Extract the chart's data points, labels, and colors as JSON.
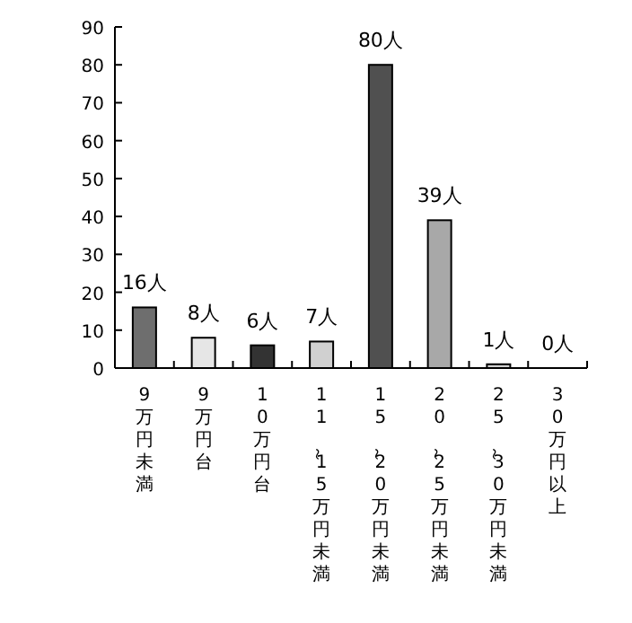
{
  "chart_data": {
    "type": "bar",
    "categories": [
      "9万円未満",
      "9万円台",
      "10万円台",
      "11～15万円未満",
      "15～20万円未満",
      "20～25万円未満",
      "25～30万円未満",
      "30万円以上"
    ],
    "values": [
      16,
      8,
      6,
      7,
      80,
      39,
      1,
      0
    ],
    "colors": [
      "#6e6e6e",
      "#e6e6e6",
      "#333333",
      "#d0d0d0",
      "#505050",
      "#a8a8a8",
      "#d0d0d0",
      "#ffffff"
    ],
    "value_labels": [
      "16人",
      "8人",
      "6人",
      "7人",
      "80人",
      "39人",
      "1人",
      "0人"
    ],
    "ylim": [
      0,
      90
    ],
    "yticks": [
      0,
      10,
      20,
      30,
      40,
      50,
      60,
      70,
      80,
      90
    ],
    "grid": false
  }
}
